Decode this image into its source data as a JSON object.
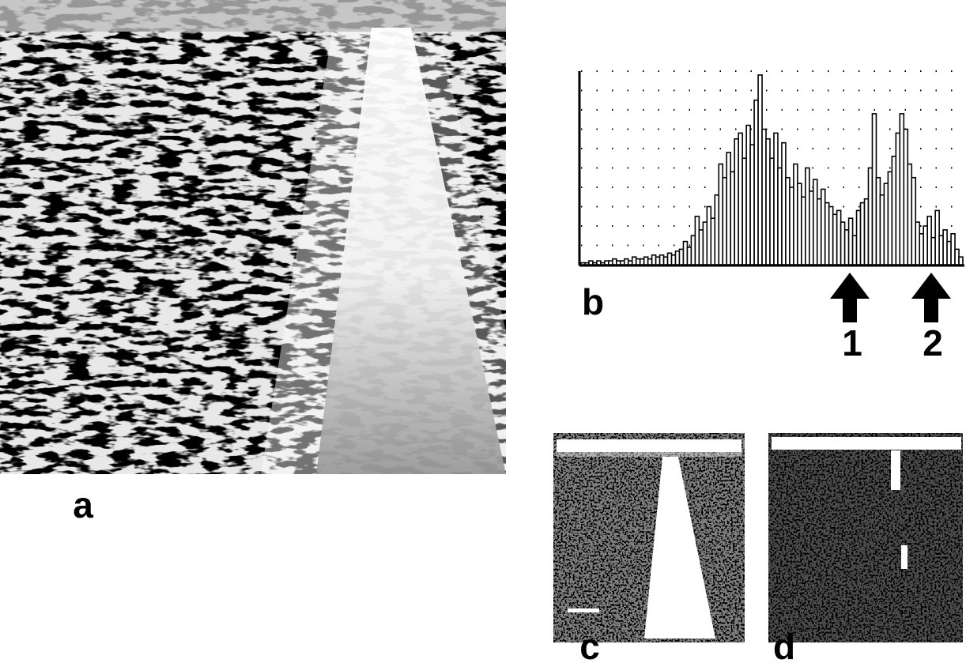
{
  "figure": {
    "panel_labels": [
      "a",
      "b",
      "c",
      "d"
    ],
    "arrow_labels": [
      "1",
      "2"
    ]
  },
  "chart_data": {
    "type": "bar",
    "values": [
      0.1,
      0.1,
      0.2,
      0.1,
      0.2,
      0.1,
      0.2,
      0.2,
      0.3,
      0.2,
      0.2,
      0.3,
      0.2,
      0.4,
      0.3,
      0.3,
      0.4,
      0.3,
      0.5,
      0.4,
      0.5,
      0.4,
      0.6,
      0.5,
      0.7,
      0.8,
      1.2,
      0.9,
      1.5,
      2.5,
      1.8,
      2.2,
      3,
      2.4,
      3.6,
      5.2,
      4.5,
      5.8,
      4.8,
      6.5,
      6.8,
      5.5,
      7.2,
      6.2,
      8.5,
      9.8,
      7,
      6.5,
      5.5,
      6.8,
      5,
      6.3,
      4.5,
      4,
      5.2,
      4.2,
      3.5,
      5,
      3.8,
      4.4,
      3.4,
      3.9,
      3.2,
      3,
      2.6,
      2.8,
      2.2,
      1.8,
      2.4,
      1.5,
      2.8,
      3.2,
      3.4,
      5,
      7.8,
      4.5,
      3.6,
      4.2,
      4.8,
      5.6,
      6.8,
      7.8,
      7,
      5.2,
      4.5,
      2.2,
      1.6,
      2,
      2.5,
      1.4,
      2.8,
      1.5,
      1.8,
      1.2,
      1.6,
      0.8,
      0.4
    ],
    "ylim": [
      0,
      10
    ],
    "yticks": [
      1,
      2,
      3,
      4,
      5,
      6,
      7,
      8,
      9,
      10
    ],
    "grid": true,
    "color": "#ffffff"
  }
}
